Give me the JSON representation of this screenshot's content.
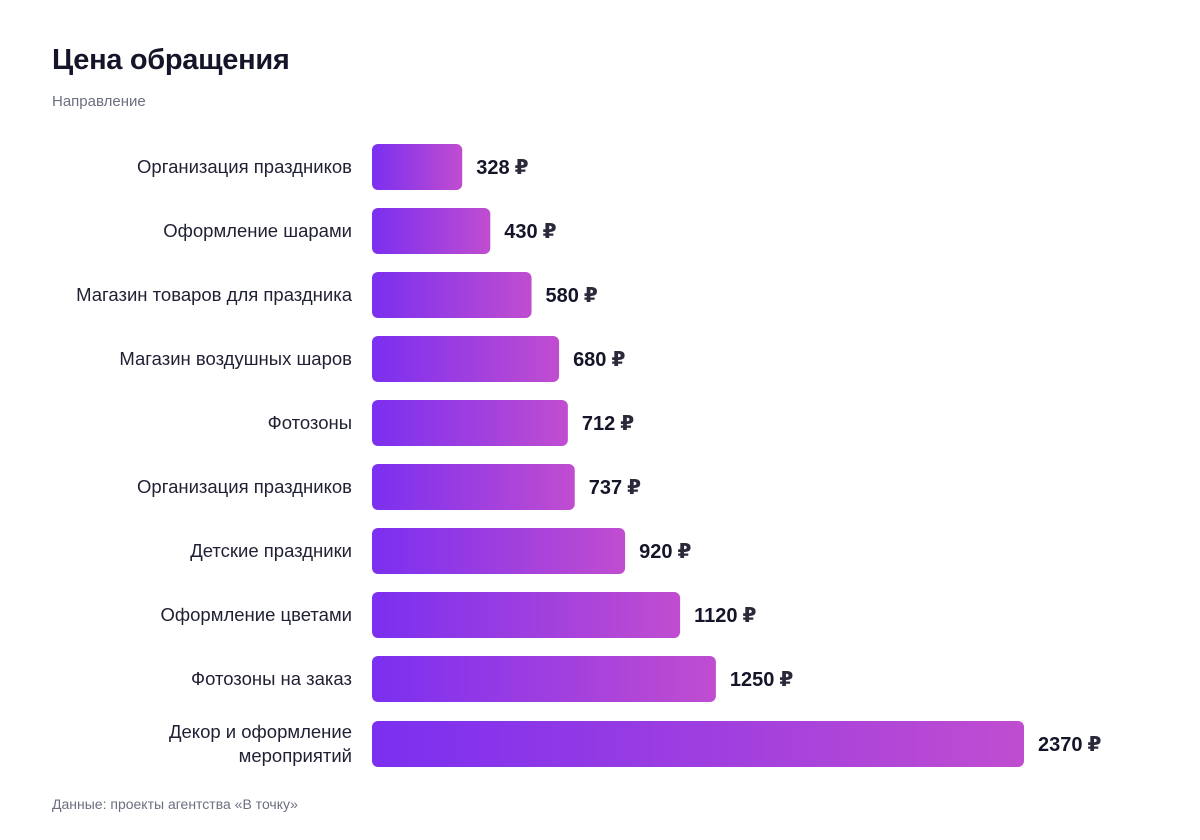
{
  "header": {
    "title": "Цена обращения",
    "subtitle": "Направление"
  },
  "footer": {
    "source": "Данные: проекты агентства «В точку»"
  },
  "colors": {
    "bar_start": "#7b2ff0",
    "bar_end": "#c04dd0",
    "text": "#1f2033",
    "muted": "#6b6f80"
  },
  "chart_data": {
    "type": "bar",
    "orientation": "horizontal",
    "title": "Цена обращения",
    "subtitle": "Направление",
    "unit": "₽",
    "xlim": [
      0,
      2370
    ],
    "grid": false,
    "categories": [
      [
        "Организация праздников"
      ],
      [
        "Оформление шарами"
      ],
      [
        "Магазин товаров для праздника"
      ],
      [
        "Магазин воздушных шаров"
      ],
      [
        "Фотозоны"
      ],
      [
        "Организация праздников"
      ],
      [
        "Детские праздники"
      ],
      [
        "Оформление цветами"
      ],
      [
        "Фотозоны на заказ"
      ],
      [
        "Декор и оформление",
        "мероприятий"
      ]
    ],
    "values": [
      328,
      430,
      580,
      680,
      712,
      737,
      920,
      1120,
      1250,
      2370
    ]
  }
}
